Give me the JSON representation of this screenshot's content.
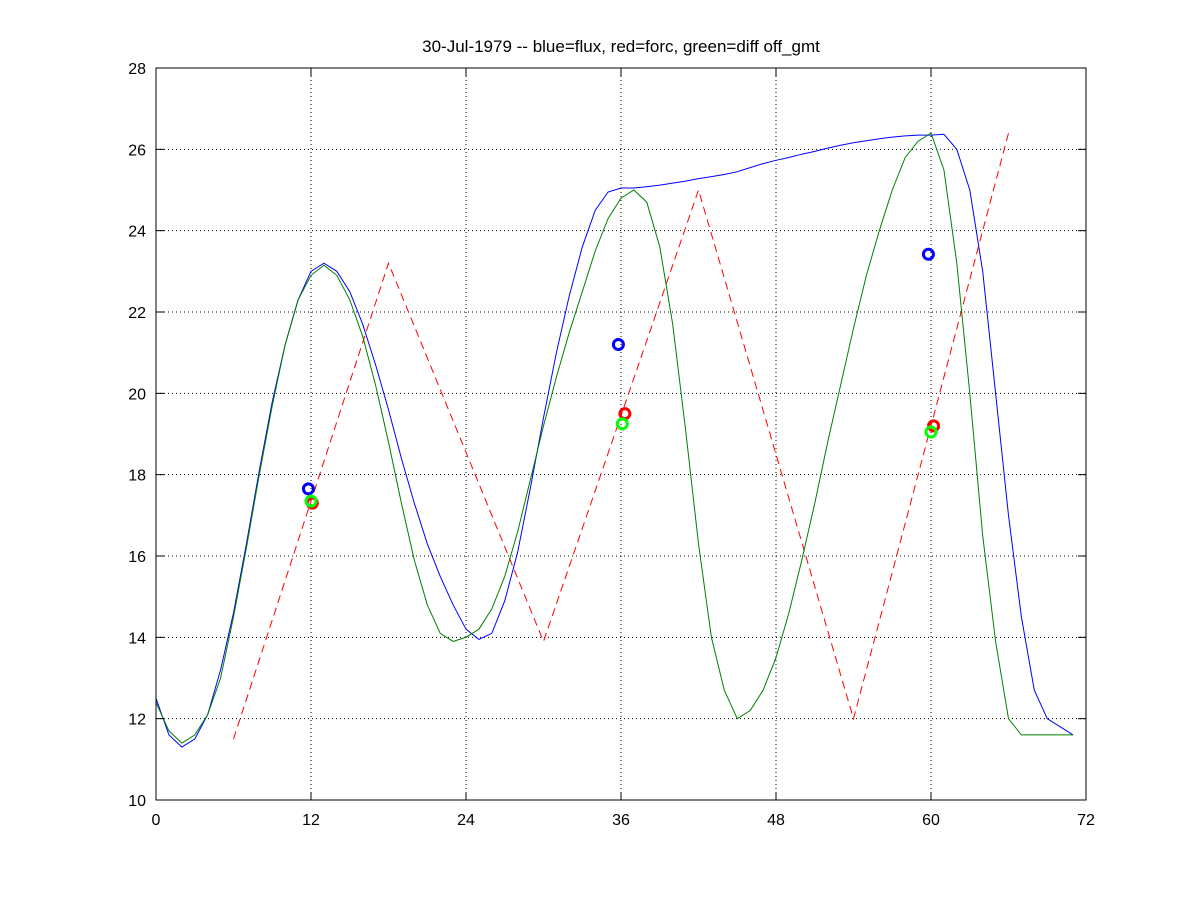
{
  "chart_data": {
    "type": "line",
    "title": "30-Jul-1979 -- blue=flux, red=forc, green=diff off_gmt",
    "xlim": [
      0,
      72
    ],
    "ylim": [
      10,
      28
    ],
    "xticks": [
      0,
      12,
      24,
      36,
      48,
      60,
      72
    ],
    "yticks": [
      10,
      12,
      14,
      16,
      18,
      20,
      22,
      24,
      26,
      28
    ],
    "grid": true,
    "series": [
      {
        "color": "#0000ff",
        "style": "solid",
        "x": [
          0,
          1,
          2,
          3,
          4,
          5,
          6,
          7,
          8,
          9,
          10,
          11,
          12,
          13,
          14,
          15,
          16,
          17,
          18,
          19,
          20,
          21,
          22,
          23,
          24,
          25,
          26,
          27,
          28,
          29,
          30,
          31,
          32,
          33,
          34,
          35,
          36,
          37,
          38,
          39,
          40,
          41,
          42,
          43,
          44,
          45,
          46,
          47,
          48,
          49,
          50,
          51,
          52,
          53,
          54,
          55,
          56,
          57,
          58,
          59,
          60,
          61,
          62,
          63,
          64,
          65,
          66,
          67,
          68,
          69,
          70,
          71
        ],
        "y": [
          12.5,
          11.6,
          11.3,
          11.5,
          12.1,
          13.2,
          14.6,
          16.3,
          18.1,
          19.8,
          21.2,
          22.3,
          23.0,
          23.2,
          23.0,
          22.5,
          21.7,
          20.7,
          19.6,
          18.4,
          17.3,
          16.3,
          15.5,
          14.8,
          14.2,
          13.95,
          14.1,
          14.9,
          16.1,
          17.7,
          19.4,
          21.0,
          22.4,
          23.6,
          24.5,
          24.95,
          25.05,
          25.05,
          25.08,
          25.12,
          25.17,
          25.22,
          25.28,
          25.33,
          25.38,
          25.45,
          25.55,
          25.65,
          25.73,
          25.8,
          25.88,
          25.95,
          26.03,
          26.1,
          26.16,
          26.21,
          26.26,
          26.3,
          26.33,
          26.35,
          26.35,
          26.37,
          26.0,
          25.0,
          23.0,
          20.0,
          17.0,
          14.5,
          12.7,
          12.0,
          11.8,
          11.6
        ]
      },
      {
        "color": "#ff0000",
        "style": "dashed",
        "x": [
          6,
          18,
          30,
          42,
          54,
          66
        ],
        "y": [
          11.5,
          23.2,
          13.9,
          25.0,
          12.0,
          26.4
        ]
      },
      {
        "color": "#007f00",
        "style": "solid",
        "x": [
          0,
          1,
          2,
          3,
          4,
          5,
          6,
          7,
          8,
          9,
          10,
          11,
          12,
          13,
          14,
          15,
          16,
          17,
          18,
          19,
          20,
          21,
          22,
          23,
          24,
          25,
          26,
          27,
          28,
          29,
          30,
          31,
          32,
          33,
          34,
          35,
          36,
          37,
          38,
          39,
          40,
          41,
          42,
          43,
          44,
          45,
          46,
          47,
          48,
          49,
          50,
          51,
          52,
          53,
          54,
          55,
          56,
          57,
          58,
          59,
          60,
          61,
          62,
          63,
          64,
          65,
          66,
          67,
          68,
          69,
          70,
          71
        ],
        "y": [
          12.4,
          11.7,
          11.4,
          11.6,
          12.1,
          13.0,
          14.5,
          16.2,
          18.0,
          19.7,
          21.2,
          22.3,
          22.9,
          23.15,
          22.9,
          22.3,
          21.4,
          20.2,
          18.8,
          17.3,
          15.9,
          14.8,
          14.1,
          13.9,
          14.0,
          14.2,
          14.7,
          15.5,
          16.6,
          17.9,
          19.2,
          20.4,
          21.5,
          22.5,
          23.5,
          24.3,
          24.8,
          25.0,
          24.7,
          23.6,
          21.7,
          19.1,
          16.3,
          14.0,
          12.7,
          12.0,
          12.2,
          12.7,
          13.5,
          14.6,
          15.9,
          17.3,
          18.8,
          20.2,
          21.6,
          22.9,
          24.0,
          25.0,
          25.8,
          26.2,
          26.4,
          25.5,
          23.2,
          20.0,
          16.5,
          13.9,
          12.0,
          11.6,
          11.6,
          11.6,
          11.6,
          11.6
        ]
      }
    ],
    "markers": [
      {
        "color": "#0000ff",
        "x": 11.8,
        "y": 17.65
      },
      {
        "color": "#ff0000",
        "x": 12.1,
        "y": 17.3
      },
      {
        "color": "#00ff00",
        "x": 12.0,
        "y": 17.35
      },
      {
        "color": "#0000ff",
        "x": 35.8,
        "y": 21.2
      },
      {
        "color": "#ff0000",
        "x": 36.3,
        "y": 19.5
      },
      {
        "color": "#00ff00",
        "x": 36.1,
        "y": 19.25
      },
      {
        "color": "#0000ff",
        "x": 59.8,
        "y": 23.42
      },
      {
        "color": "#ff0000",
        "x": 60.2,
        "y": 19.2
      },
      {
        "color": "#00ff00",
        "x": 60.0,
        "y": 19.05
      }
    ]
  }
}
